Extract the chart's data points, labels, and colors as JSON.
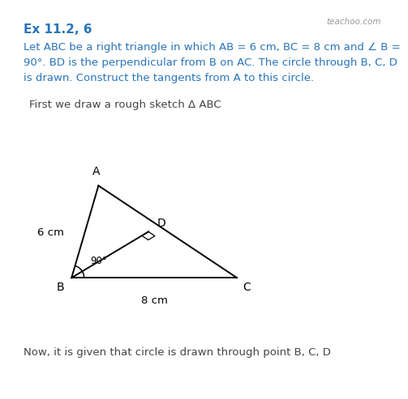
{
  "title": "Ex 11.2, 6",
  "title_color": "#2874B8",
  "body_line1": "Let ABC be a right triangle in which AB = 6 cm, BC = 8 cm and ∠ B =",
  "body_line2": "90°. BD is the perpendicular from B on AC. The circle through B, C, D",
  "body_line3": "is drawn. Construct the tangents from A to this circle.",
  "body_color": "#2874B8",
  "sketch_label": "First we draw a rough sketch Δ ABC",
  "sketch_color": "#444444",
  "bottom_text": "Now, it is given that circle is drawn through point B, C, D",
  "bottom_color": "#444444",
  "watermark": "teachoo.com",
  "watermark_color": "#999999",
  "bg_color": "#ffffff",
  "tri_color": "#000000",
  "A": [
    0.235,
    0.535
  ],
  "B": [
    0.165,
    0.295
  ],
  "C": [
    0.595,
    0.295
  ],
  "D": [
    0.365,
    0.415
  ]
}
